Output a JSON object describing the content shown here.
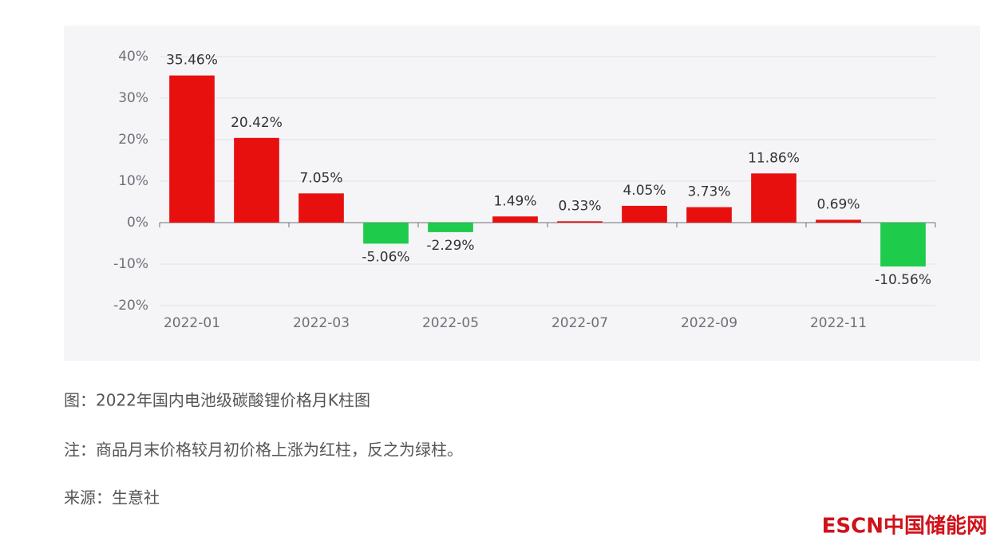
{
  "chart_data": {
    "type": "bar",
    "categories": [
      "2022-01",
      null,
      "2022-03",
      null,
      "2022-05",
      null,
      "2022-07",
      null,
      "2022-09",
      null,
      "2022-11",
      null
    ],
    "values": [
      35.46,
      20.42,
      7.05,
      -5.06,
      -2.29,
      1.49,
      0.33,
      4.05,
      3.73,
      11.86,
      0.69,
      -10.56
    ],
    "value_labels": [
      "35.46%",
      "20.42%",
      "7.05%",
      "-5.06%",
      "-2.29%",
      "1.49%",
      "0.33%",
      "4.05%",
      "3.73%",
      "11.86%",
      "0.69%",
      "-10.56%"
    ],
    "positive_color": "#e8100f",
    "negative_color": "#1ecb4a",
    "ylim": [
      -20,
      40
    ],
    "yticks": [
      {
        "value": -20,
        "label": "-20%"
      },
      {
        "value": -10,
        "label": "-10%"
      },
      {
        "value": 0,
        "label": "0%"
      },
      {
        "value": 10,
        "label": "10%"
      },
      {
        "value": 20,
        "label": "20%"
      },
      {
        "value": 30,
        "label": "30%"
      },
      {
        "value": 40,
        "label": "40%"
      }
    ],
    "grid": true
  },
  "caption": {
    "figure": "图：2022年国内电池级碳酸锂价格月K柱图",
    "note": "注：商品月末价格较月初价格上涨为红柱，反之为绿柱。",
    "source": "来源：生意社"
  },
  "logo": "ESCN中国储能网"
}
